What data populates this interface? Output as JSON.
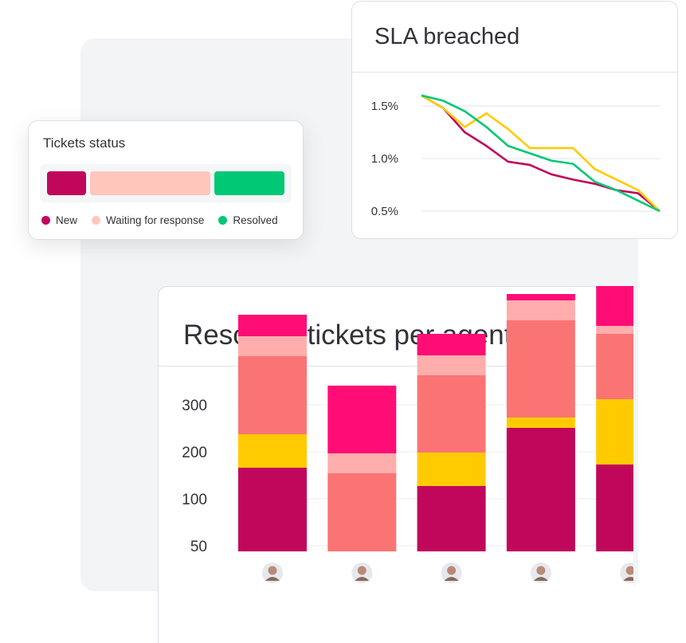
{
  "tickets_status": {
    "title": "Tickets status",
    "segments": [
      {
        "label": "New",
        "color": "#c0075c",
        "share": 0.16
      },
      {
        "label": "Waiting for response",
        "color": "#ffc7bb",
        "share": 0.5
      },
      {
        "label": "Resolved",
        "color": "#00c875",
        "share": 0.29
      }
    ],
    "legend": [
      "New",
      "Waiting for response",
      "Resolved"
    ]
  },
  "sla": {
    "title": "SLA breached",
    "chart_data": {
      "type": "line",
      "ytick_labels": [
        "1.5%",
        "1.0%",
        "0.5%"
      ],
      "yticks": [
        1.5,
        1.0,
        0.5
      ],
      "ylim": [
        0.5,
        1.5
      ],
      "x": [
        0,
        1,
        2,
        3,
        4,
        5,
        6,
        7,
        8,
        9,
        10,
        11
      ],
      "series": [
        {
          "color": "#c0075c",
          "values": [
            1.6,
            1.48,
            1.25,
            1.12,
            0.97,
            0.94,
            0.85,
            0.8,
            0.76,
            0.7,
            0.67,
            0.5
          ]
        },
        {
          "color": "#ffcb00",
          "values": [
            1.6,
            1.48,
            1.3,
            1.43,
            1.28,
            1.1,
            1.1,
            1.1,
            0.9,
            0.8,
            0.7,
            0.5
          ]
        },
        {
          "color": "#00c875",
          "values": [
            1.6,
            1.55,
            1.45,
            1.3,
            1.12,
            1.05,
            0.98,
            0.95,
            0.78,
            0.7,
            0.6,
            0.5
          ]
        }
      ]
    }
  },
  "resolved": {
    "title": "Resolved tickets per agent",
    "chart_data": {
      "type": "bar",
      "stacked": true,
      "ytick_labels": [
        "300",
        "200",
        "100",
        "50"
      ],
      "agents": [
        "agent-1",
        "agent-2",
        "agent-3",
        "agent-4",
        "agent-5"
      ],
      "segment_colors": [
        "#c0075c",
        "#ffcb00",
        "#fb7474",
        "#ffadad",
        "#ff0d76"
      ],
      "stacks": [
        [
          105,
          42,
          98,
          25,
          27
        ],
        [
          0,
          0,
          98,
          25,
          85
        ],
        [
          82,
          42,
          97,
          25,
          27
        ],
        [
          155,
          13,
          122,
          25,
          8
        ],
        [
          109,
          82,
          82,
          10,
          58
        ]
      ]
    }
  }
}
